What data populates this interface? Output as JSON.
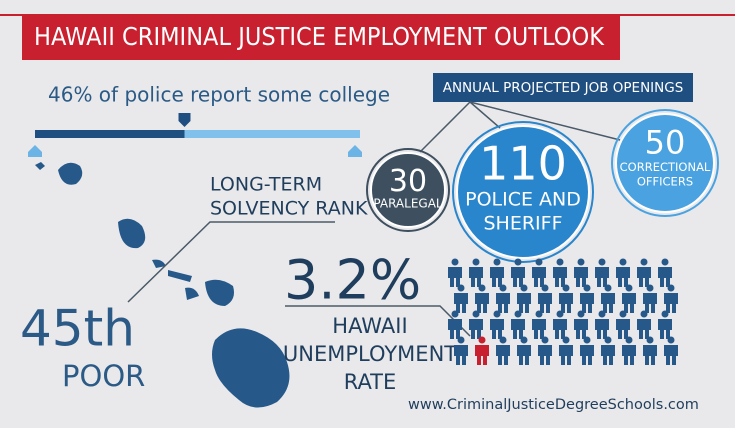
{
  "header": {
    "title": "HAWAII CRIMINAL JUSTICE EMPLOYMENT OUTLOOK"
  },
  "college": {
    "text": "46% of police report some college",
    "percent": 46
  },
  "job_openings": {
    "title": "ANNUAL PROJECTED JOB OPENINGS",
    "items": [
      {
        "number": "30",
        "label_lines": [
          "PARALEGAL"
        ]
      },
      {
        "number": "110",
        "label_lines": [
          "POLICE AND",
          "SHERIFF"
        ]
      },
      {
        "number": "50",
        "label_lines": [
          "CORRECTIONAL",
          "OFFICERS"
        ]
      }
    ]
  },
  "solvency": {
    "label_lines": [
      "LONG-TERM",
      "SOLVENCY RANK"
    ],
    "rank": "45th",
    "rating": "POOR"
  },
  "unemployment": {
    "rate": "3.2%",
    "label_lines": [
      "HAWAII",
      "UNEMPLOYMENT",
      "RATE"
    ]
  },
  "footer": {
    "url": "www.CriminalJusticeDegreeSchools.com"
  }
}
